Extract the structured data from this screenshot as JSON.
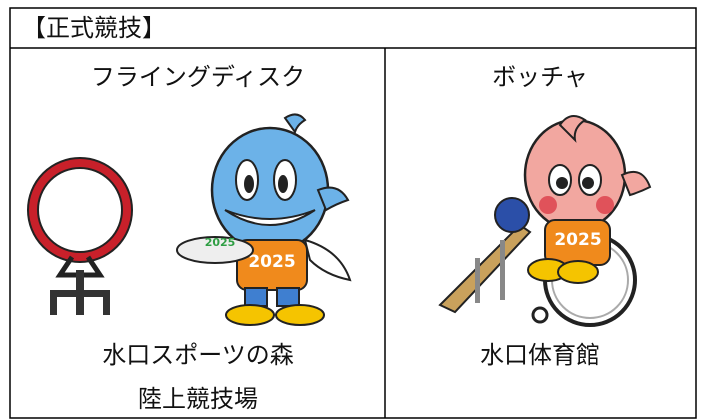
{
  "header": {
    "title": "【正式競技】"
  },
  "events": [
    {
      "name": "フライングディスク",
      "venue": [
        "水口スポーツの森",
        "陸上競技場"
      ],
      "mascot_text": "2025",
      "disc_text": "2025"
    },
    {
      "name": "ボッチャ",
      "venue": [
        "水口体育館"
      ],
      "mascot_text": "2025"
    }
  ]
}
